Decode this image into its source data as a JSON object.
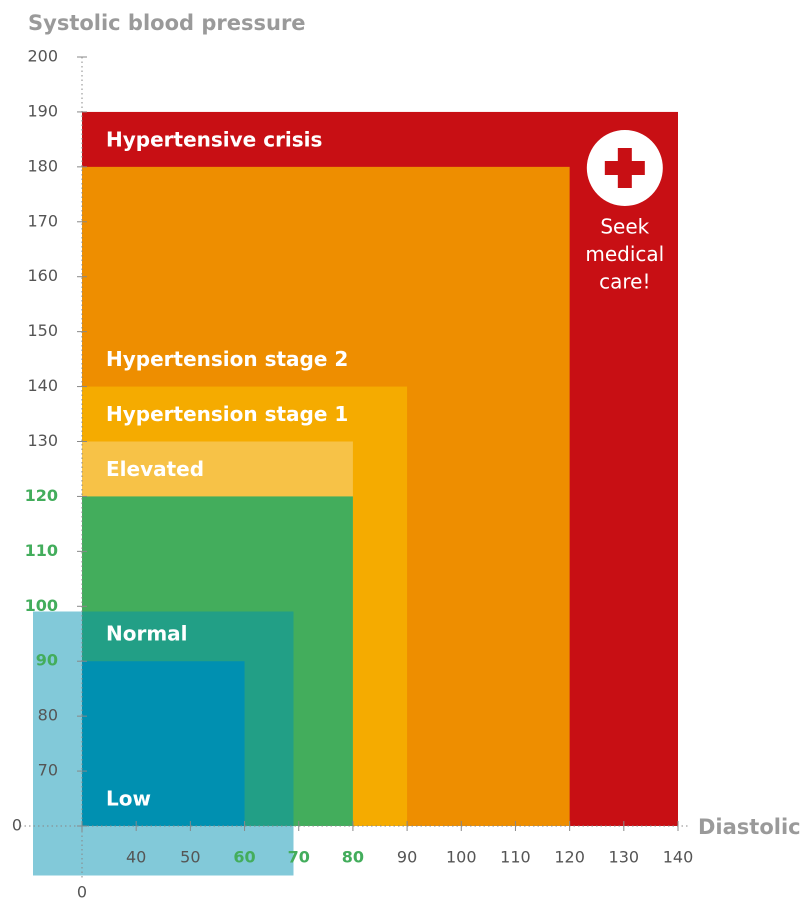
{
  "chart_data": {
    "type": "zone",
    "y_title": "Systolic blood pressure",
    "x_title": "Diastolic",
    "xlim": [
      30,
      140
    ],
    "ylim": [
      60,
      200
    ],
    "xticks": [
      {
        "value": 30,
        "label": "0"
      },
      40,
      50,
      60,
      70,
      80,
      90,
      100,
      110,
      120,
      130,
      140
    ],
    "yticks": [
      {
        "value": 60,
        "label": "0"
      },
      70,
      80,
      90,
      100,
      110,
      120,
      130,
      140,
      150,
      160,
      170,
      180,
      190,
      200
    ],
    "tick_color": "#555555",
    "zones": [
      {
        "name": "Hypertensive crisis",
        "color": "#c80f14",
        "x": 140,
        "y": 190
      },
      {
        "name": "Hypertension stage 2",
        "color": "#ee8e00",
        "x": 120,
        "y": 180
      },
      {
        "name": "Hypertension stage 1",
        "color": "#f5ab00",
        "x": 90,
        "y": 140
      },
      {
        "name": "Elevated",
        "color": "#f7c247",
        "x": 80,
        "y": 130
      },
      {
        "name": "Normal",
        "color": "#43ad5c",
        "x": 80,
        "y": 120,
        "highlight_ticks": true
      },
      {
        "name": "Low",
        "color": "#0590b1",
        "x": 60,
        "y": 90,
        "glow": true
      }
    ],
    "annotation": {
      "lines": [
        "Seek",
        "medical",
        "care!"
      ]
    }
  }
}
